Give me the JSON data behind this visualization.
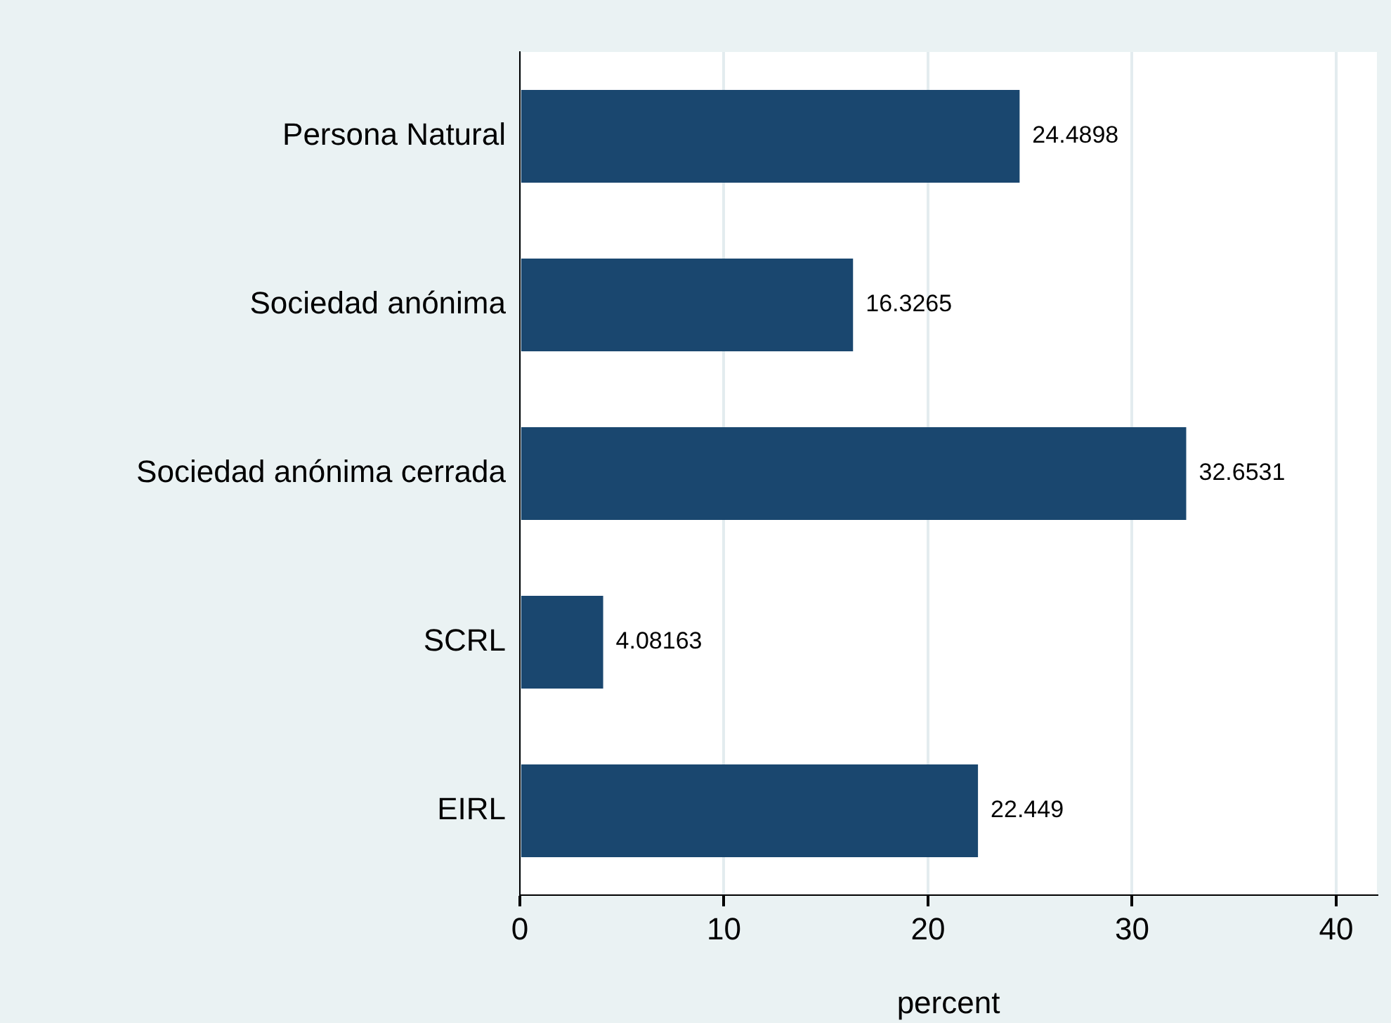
{
  "chart_data": {
    "type": "bar",
    "orientation": "horizontal",
    "xlabel": "percent",
    "categories": [
      "Persona Natural",
      "Sociedad anónima",
      "Sociedad anónima cerrada",
      "SCRL",
      "EIRL"
    ],
    "values": [
      24.4898,
      16.3265,
      32.6531,
      4.08163,
      22.449
    ],
    "color": "#1a476f",
    "xlim": [
      0,
      42
    ],
    "xticks": [
      0,
      10,
      20,
      30,
      40
    ],
    "grid": "x",
    "data_labels": true,
    "legend": false
  }
}
